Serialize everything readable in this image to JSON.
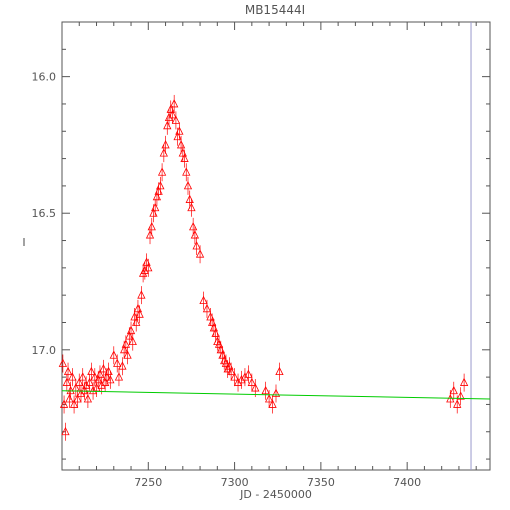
{
  "chart_data": {
    "type": "scatter",
    "title": "MB15444I",
    "xlabel": "JD - 2450000",
    "ylabel": "I",
    "xlim": [
      7200,
      7448
    ],
    "ylim": [
      17.44,
      15.8
    ],
    "y_inverted": true,
    "x_ticks": [
      7250,
      7300,
      7350,
      7400
    ],
    "x_tick_labels": [
      "7250",
      "7300",
      "7350",
      "7400"
    ],
    "y_ticks": [
      16.0,
      16.5,
      17.0
    ],
    "y_tick_labels": [
      "16.0",
      "16.5",
      "17.0"
    ],
    "grid": false,
    "marker": "triangle",
    "colors": {
      "points": "#ff0000",
      "model": "#00cc00",
      "vline": "#9999cc",
      "axis": "#555555"
    },
    "vertical_line_x": 7437,
    "series": [
      {
        "x": [
          7200.5,
          7201.2,
          7202.0,
          7202.8,
          7203.5,
          7204.3,
          7205.0,
          7206.0,
          7207.0,
          7208.0,
          7209.0,
          7210.0,
          7211.0,
          7212.0,
          7213.0,
          7214.0,
          7215.0,
          7216.0,
          7217.0,
          7218.0,
          7219.0,
          7220.0,
          7221.0,
          7222.0,
          7223.0,
          7224.0,
          7225.0,
          7226.0,
          7227.0,
          7228.0,
          7230.0,
          7232.0,
          7233.0,
          7235.0,
          7236.0,
          7237.0,
          7238.0,
          7239.0,
          7240.0,
          7241.0,
          7242.0,
          7243.0,
          7244.0,
          7245.0,
          7246.0,
          7247.0,
          7248.0,
          7249.0,
          7250.0,
          7251.0,
          7252.0,
          7253.0,
          7254.0,
          7255.0,
          7256.0,
          7257.0,
          7258.0,
          7259.0,
          7260.0,
          7261.0,
          7262.0,
          7263.0,
          7264.0,
          7265.0,
          7266.0,
          7267.0,
          7268.0,
          7269.0,
          7270.0,
          7271.0,
          7272.0,
          7273.0,
          7274.0,
          7275.0,
          7276.0,
          7277.0,
          7278.0,
          7280.0,
          7282.0,
          7284.0,
          7286.0,
          7287.0,
          7288.0,
          7289.0,
          7290.0,
          7291.0,
          7292.0,
          7293.0,
          7294.0,
          7295.0,
          7296.0,
          7297.0,
          7298.0,
          7300.0,
          7302.0,
          7304.0,
          7306.0,
          7308.0,
          7310.0,
          7312.0,
          7318.0,
          7320.0,
          7322.0,
          7324.0,
          7326.0,
          7425.0,
          7427.0,
          7429.0,
          7431.0,
          7433.0
        ],
        "y": [
          17.05,
          17.2,
          17.3,
          17.12,
          17.08,
          17.18,
          17.15,
          17.1,
          17.2,
          17.14,
          17.18,
          17.12,
          17.16,
          17.1,
          17.15,
          17.13,
          17.18,
          17.12,
          17.08,
          17.15,
          17.1,
          17.14,
          17.11,
          17.09,
          17.13,
          17.07,
          17.12,
          17.1,
          17.08,
          17.11,
          17.02,
          17.05,
          17.1,
          17.06,
          17.0,
          16.98,
          17.02,
          16.95,
          16.93,
          16.97,
          16.88,
          16.9,
          16.85,
          16.87,
          16.8,
          16.72,
          16.71,
          16.68,
          16.7,
          16.58,
          16.55,
          16.5,
          16.48,
          16.44,
          16.42,
          16.4,
          16.35,
          16.28,
          16.25,
          16.18,
          16.15,
          16.12,
          16.14,
          16.1,
          16.16,
          16.22,
          16.2,
          16.25,
          16.28,
          16.3,
          16.35,
          16.4,
          16.45,
          16.48,
          16.55,
          16.58,
          16.62,
          16.65,
          16.82,
          16.85,
          16.88,
          16.9,
          16.92,
          16.94,
          16.97,
          16.98,
          17.0,
          17.02,
          17.04,
          17.05,
          17.07,
          17.06,
          17.08,
          17.1,
          17.12,
          17.11,
          17.1,
          17.09,
          17.12,
          17.14,
          17.15,
          17.18,
          17.2,
          17.16,
          17.08,
          17.18,
          17.15,
          17.2,
          17.17,
          17.12
        ]
      },
      {
        "type": "line",
        "x": [
          7200,
          7448
        ],
        "y": [
          17.15,
          17.18
        ]
      }
    ]
  }
}
